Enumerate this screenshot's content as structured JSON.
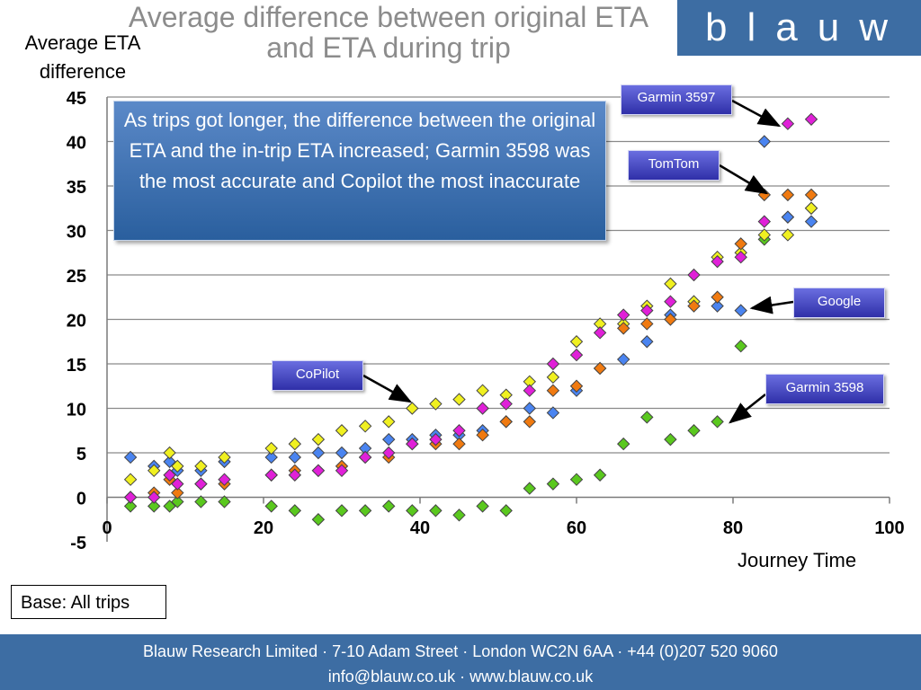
{
  "slide": {
    "title": "Average difference between original ETA and ETA during trip",
    "logo_text": "blauw",
    "callout": "As trips got longer, the difference between the original ETA and the in-trip ETA increased; Garmin 3598 was the most accurate and Copilot the most inaccurate",
    "base_note": "Base: All trips",
    "footer_line1": "Blauw Research Limited · 7-10 Adam Street · London WC2N 6AA · +44 (0)207 520 9060",
    "footer_line2": "info@blauw.co.uk · www.blauw.co.uk",
    "brand_color": "#3d6da3"
  },
  "chart_data": {
    "type": "scatter",
    "ylabel": "Average ETA difference",
    "xlabel": "Journey Time",
    "xlim": [
      0,
      100
    ],
    "ylim": [
      -5,
      45
    ],
    "x_ticks": [
      0,
      20,
      40,
      60,
      80,
      100
    ],
    "y_ticks": [
      -5,
      0,
      5,
      10,
      15,
      20,
      25,
      30,
      35,
      40,
      45
    ],
    "grid": "horizontal",
    "marker": "diamond",
    "series": [
      {
        "name": "Garmin 3597",
        "color": "#e020d8",
        "points": [
          [
            3,
            0
          ],
          [
            6,
            0
          ],
          [
            8,
            2.5
          ],
          [
            9,
            1.5
          ],
          [
            12,
            1.5
          ],
          [
            15,
            2
          ],
          [
            21,
            2.5
          ],
          [
            24,
            2.5
          ],
          [
            27,
            3
          ],
          [
            30,
            3
          ],
          [
            33,
            4.5
          ],
          [
            36,
            5
          ],
          [
            39,
            6
          ],
          [
            42,
            6.5
          ],
          [
            45,
            7.5
          ],
          [
            48,
            10
          ],
          [
            51,
            10.5
          ],
          [
            54,
            12
          ],
          [
            57,
            15
          ],
          [
            60,
            16
          ],
          [
            63,
            18.5
          ],
          [
            66,
            20.5
          ],
          [
            69,
            21
          ],
          [
            72,
            22
          ],
          [
            75,
            25
          ],
          [
            78,
            26.5
          ],
          [
            81,
            27
          ],
          [
            84,
            31
          ],
          [
            87,
            42
          ],
          [
            90,
            42.5
          ]
        ]
      },
      {
        "name": "TomTom",
        "color": "#f07a10",
        "points": [
          [
            3,
            0
          ],
          [
            6,
            0.5
          ],
          [
            8,
            2
          ],
          [
            9,
            0.5
          ],
          [
            12,
            1.5
          ],
          [
            15,
            1.5
          ],
          [
            21,
            2.5
          ],
          [
            24,
            3
          ],
          [
            27,
            3
          ],
          [
            30,
            3.5
          ],
          [
            33,
            4.5
          ],
          [
            36,
            4.5
          ],
          [
            39,
            6
          ],
          [
            42,
            6
          ],
          [
            45,
            6
          ],
          [
            48,
            7
          ],
          [
            51,
            8.5
          ],
          [
            54,
            8.5
          ],
          [
            57,
            12
          ],
          [
            60,
            12.5
          ],
          [
            63,
            14.5
          ],
          [
            66,
            19
          ],
          [
            69,
            19.5
          ],
          [
            72,
            20
          ],
          [
            75,
            21.5
          ],
          [
            78,
            22.5
          ],
          [
            81,
            28.5
          ],
          [
            84,
            34
          ],
          [
            87,
            34
          ],
          [
            90,
            34
          ]
        ]
      },
      {
        "name": "Google",
        "color": "#4a84f0",
        "points": [
          [
            3,
            4.5
          ],
          [
            6,
            3.5
          ],
          [
            8,
            4
          ],
          [
            9,
            3
          ],
          [
            12,
            3
          ],
          [
            15,
            4
          ],
          [
            21,
            4.5
          ],
          [
            24,
            4.5
          ],
          [
            27,
            5
          ],
          [
            30,
            5
          ],
          [
            33,
            5.5
          ],
          [
            36,
            6.5
          ],
          [
            39,
            6.5
          ],
          [
            42,
            7
          ],
          [
            45,
            7
          ],
          [
            48,
            7.5
          ],
          [
            51,
            8.5
          ],
          [
            54,
            10
          ],
          [
            57,
            9.5
          ],
          [
            60,
            12
          ],
          [
            63,
            14.5
          ],
          [
            66,
            15.5
          ],
          [
            69,
            17.5
          ],
          [
            72,
            20.5
          ],
          [
            75,
            22
          ],
          [
            78,
            21.5
          ],
          [
            81,
            21
          ],
          [
            84,
            40
          ],
          [
            87,
            31.5
          ],
          [
            90,
            31
          ]
        ]
      },
      {
        "name": "Garmin 3598",
        "color": "#5ac81e",
        "points": [
          [
            3,
            -1
          ],
          [
            6,
            -1
          ],
          [
            8,
            -1
          ],
          [
            9,
            -0.5
          ],
          [
            12,
            -0.5
          ],
          [
            15,
            -0.5
          ],
          [
            21,
            -1
          ],
          [
            24,
            -1.5
          ],
          [
            27,
            -2.5
          ],
          [
            30,
            -1.5
          ],
          [
            33,
            -1.5
          ],
          [
            36,
            -1
          ],
          [
            39,
            -1.5
          ],
          [
            42,
            -1.5
          ],
          [
            45,
            -2
          ],
          [
            48,
            -1
          ],
          [
            51,
            -1.5
          ],
          [
            54,
            1
          ],
          [
            57,
            1.5
          ],
          [
            60,
            2
          ],
          [
            63,
            2.5
          ],
          [
            66,
            6
          ],
          [
            69,
            9
          ],
          [
            72,
            6.5
          ],
          [
            75,
            7.5
          ],
          [
            78,
            8.5
          ],
          [
            81,
            17
          ],
          [
            84,
            29
          ],
          [
            87,
            31.5
          ],
          [
            90,
            32.5
          ]
        ]
      },
      {
        "name": "CoPilot",
        "color": "#f0f020",
        "points": [
          [
            3,
            2
          ],
          [
            6,
            3
          ],
          [
            8,
            5
          ],
          [
            9,
            3.5
          ],
          [
            12,
            3.5
          ],
          [
            15,
            4.5
          ],
          [
            21,
            5.5
          ],
          [
            24,
            6
          ],
          [
            27,
            6.5
          ],
          [
            30,
            7.5
          ],
          [
            33,
            8
          ],
          [
            36,
            8.5
          ],
          [
            39,
            10
          ],
          [
            42,
            10.5
          ],
          [
            45,
            11
          ],
          [
            48,
            12
          ],
          [
            51,
            11.5
          ],
          [
            54,
            13
          ],
          [
            57,
            13.5
          ],
          [
            60,
            17.5
          ],
          [
            63,
            19.5
          ],
          [
            66,
            19.5
          ],
          [
            69,
            21.5
          ],
          [
            72,
            24
          ],
          [
            75,
            22
          ],
          [
            78,
            27
          ],
          [
            81,
            27.5
          ],
          [
            84,
            29.5
          ],
          [
            87,
            29.5
          ],
          [
            90,
            32.5
          ]
        ]
      }
    ]
  },
  "labels": [
    {
      "text": "Garmin 3597",
      "series": "Garmin 3597"
    },
    {
      "text": "TomTom",
      "series": "TomTom"
    },
    {
      "text": "Google",
      "series": "Google"
    },
    {
      "text": "CoPilot",
      "series": "CoPilot"
    },
    {
      "text": "Garmin 3598",
      "series": "Garmin 3598"
    }
  ]
}
